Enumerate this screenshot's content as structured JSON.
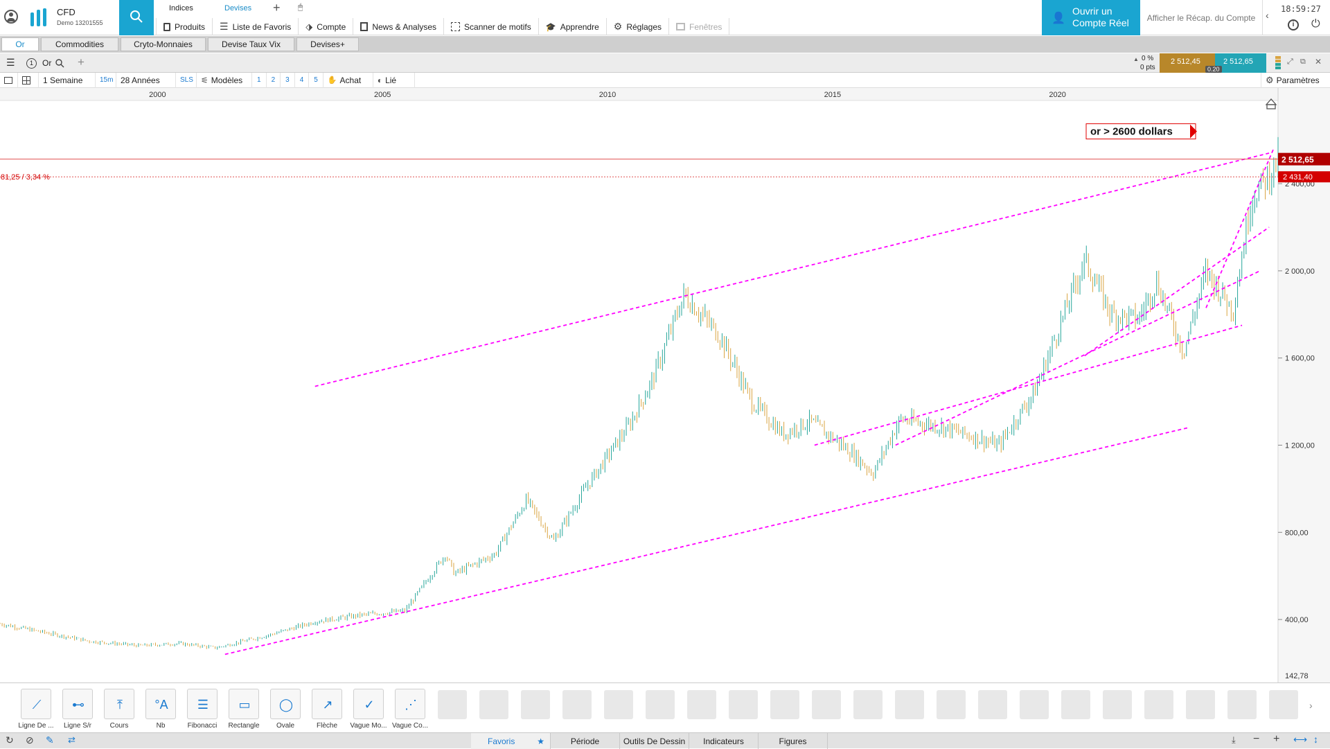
{
  "header": {
    "brand_name": "CFD",
    "account_label": "Demo 13201555",
    "tab_indices": "Indices",
    "tab_devises": "Devises",
    "menu": [
      {
        "label": "Produits",
        "icon": "book-icon"
      },
      {
        "label": "Liste de Favoris",
        "icon": "list-icon"
      },
      {
        "label": "Compte",
        "icon": "tag-icon"
      },
      {
        "label": "News & Analyses",
        "icon": "news-icon"
      },
      {
        "label": "Scanner de motifs",
        "icon": "scanner-icon"
      },
      {
        "label": "Apprendre",
        "icon": "graduation-icon"
      },
      {
        "label": "Réglages",
        "icon": "gear-icon"
      },
      {
        "label": "Fenêtres",
        "icon": "windows-icon"
      }
    ],
    "open_account_line1": "Ouvrir un",
    "open_account_line2": "Compte Réel",
    "recap_label": "Afficher le Récap. du Compte",
    "clock": "18:59:27"
  },
  "categories": [
    "Or",
    "Commodities",
    "Cryto-Monnaies",
    "Devise Taux Vix",
    "Devises+"
  ],
  "chart_header": {
    "instrument": "Or",
    "change_pct": "0 %",
    "change_pts": "0 pts",
    "bid": "2 512,45",
    "ask": "2 512,65",
    "spread": "0.20"
  },
  "toolbar": {
    "period": "1 Semaine",
    "interval": "15m",
    "range": "28 Années",
    "sls": "SLS",
    "models": "Modèles",
    "nums": [
      "1",
      "2",
      "3",
      "4",
      "5"
    ],
    "buy": "Achat",
    "linked": "Lié",
    "params": "Paramètres"
  },
  "colors": {
    "accent": "#1aa5d1",
    "trendline": "#ff00ff",
    "candle_up": "#26a69a",
    "candle_down": "#d9a441",
    "price_red": "#d40000",
    "bid_bg": "#b8872a",
    "ask_bg": "#23a5b5"
  },
  "chart_data": {
    "type": "candlestick",
    "instrument": "Or",
    "x_tick_labels": [
      "2000",
      "2005",
      "2010",
      "2015",
      "2020"
    ],
    "y_tick_labels": [
      "400,00",
      "800,00",
      "1 200,00",
      "1 600,00",
      "2 000,00",
      "2 400,00"
    ],
    "y_ticks": [
      400,
      800,
      1200,
      1600,
      2000,
      2400
    ],
    "y_bottom_label": "142,78",
    "ylim": [
      142.78,
      2750
    ],
    "xlim": [
      1996.5,
      2024.9
    ],
    "current_price": 2512.65,
    "current_price_label": "2 512,65",
    "reference_price": 2431.4,
    "reference_price_label": "2 431,40",
    "change_annotation": "81,25 / 3,34 %",
    "annotation": "or > 2600 dollars",
    "series": [
      {
        "x": [
          1996.5,
          1997.5,
          1998.5,
          1999.6,
          2000.5,
          2001.3,
          2002.5,
          2003.5,
          2004.5,
          2005.5,
          2006.4,
          2006.6,
          2007.5,
          2008.2,
          2008.8,
          2009.5,
          2010.5,
          2011.0,
          2011.7,
          2012.5,
          2013.2,
          2013.9,
          2014.5,
          2015.4,
          2015.9,
          2016.5,
          2017.5,
          2018.7,
          2019.5,
          2020.6,
          2021.2,
          2021.8,
          2022.2,
          2022.8,
          2023.3,
          2023.9,
          2024.3,
          2024.7,
          2024.9
        ],
        "y": [
          380,
          340,
          300,
          280,
          290,
          270,
          330,
          390,
          420,
          440,
          700,
          610,
          700,
          950,
          760,
          1000,
          1300,
          1500,
          1890,
          1700,
          1400,
          1250,
          1310,
          1170,
          1070,
          1320,
          1280,
          1200,
          1450,
          2050,
          1800,
          1780,
          1950,
          1630,
          2000,
          1820,
          2330,
          2440,
          2512
        ]
      }
    ],
    "trendlines": [
      {
        "x1": 2001.5,
        "y1": 240,
        "x2": 2022.9,
        "y2": 1280
      },
      {
        "x1": 2003.5,
        "y1": 1470,
        "x2": 2024.7,
        "y2": 2540
      },
      {
        "x1": 2014.6,
        "y1": 1200,
        "x2": 2024.1,
        "y2": 1750
      },
      {
        "x1": 2016.4,
        "y1": 1200,
        "x2": 2024.5,
        "y2": 2000
      },
      {
        "x1": 2020.6,
        "y1": 1610,
        "x2": 2024.7,
        "y2": 2200
      },
      {
        "x1": 2023.3,
        "y1": 1830,
        "x2": 2024.8,
        "y2": 2560
      }
    ]
  },
  "draw_tools": [
    {
      "label": "Ligne De ...",
      "icon": "trendline-tool-icon"
    },
    {
      "label": "Ligne S/r",
      "icon": "sr-line-tool-icon"
    },
    {
      "label": "Cours",
      "icon": "price-tool-icon"
    },
    {
      "label": "Nb",
      "icon": "text-tool-icon"
    },
    {
      "label": "Fibonacci",
      "icon": "fibonacci-tool-icon"
    },
    {
      "label": "Rectangle",
      "icon": "rectangle-tool-icon"
    },
    {
      "label": "Ovale",
      "icon": "oval-tool-icon"
    },
    {
      "label": "Flèche",
      "icon": "arrow-tool-icon"
    },
    {
      "label": "Vague Mo...",
      "icon": "wave-tool-icon"
    },
    {
      "label": "Vague Co...",
      "icon": "wave-corrective-tool-icon"
    }
  ],
  "status_tabs": [
    "Favoris",
    "Période",
    "Outils De Dessin",
    "Indicateurs",
    "Figures"
  ]
}
